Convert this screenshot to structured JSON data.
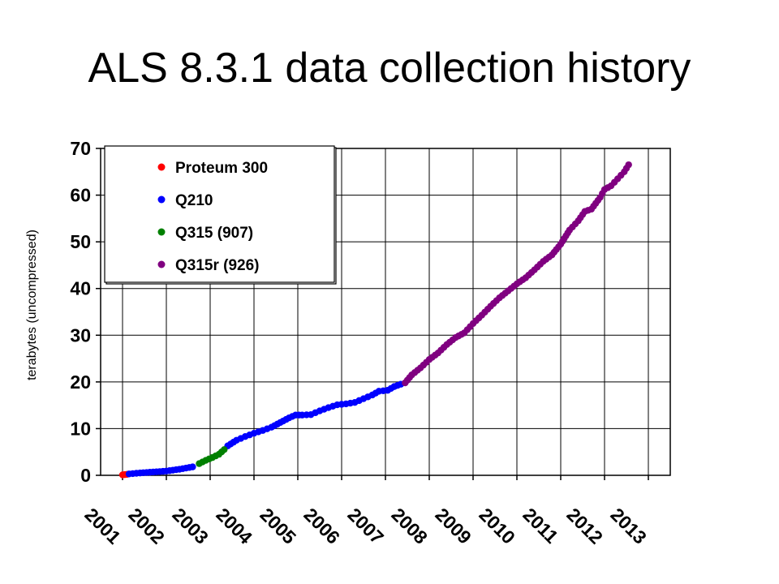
{
  "title": "ALS 8.3.1 data collection history",
  "chart_data": {
    "type": "scatter",
    "title": "ALS 8.3.1 data collection history",
    "xlabel": "",
    "ylabel": "terabytes (uncompressed)",
    "xlim": [
      2000.5,
      2013.5
    ],
    "ylim": [
      0,
      70
    ],
    "x_ticks": [
      "2001",
      "2002",
      "2003",
      "2004",
      "2005",
      "2006",
      "2007",
      "2008",
      "2009",
      "2010",
      "2011",
      "2012",
      "2013"
    ],
    "y_ticks": [
      0,
      10,
      20,
      30,
      40,
      50,
      60,
      70
    ],
    "grid": true,
    "legend_position": "top-left",
    "series": [
      {
        "name": "Proteum 300",
        "color": "#ff0000",
        "points": [
          [
            2001.0,
            0.1
          ],
          [
            2001.05,
            0.15
          ],
          [
            2001.1,
            0.2
          ]
        ]
      },
      {
        "name": "Q210",
        "color": "#0000ff",
        "points": [
          [
            2001.15,
            0.3
          ],
          [
            2001.4,
            0.5
          ],
          [
            2001.7,
            0.7
          ],
          [
            2002.0,
            0.9
          ],
          [
            2002.3,
            1.3
          ],
          [
            2002.6,
            1.8
          ],
          [
            2003.4,
            6.3
          ],
          [
            2003.6,
            7.5
          ],
          [
            2003.8,
            8.3
          ],
          [
            2004.0,
            9.0
          ],
          [
            2004.2,
            9.6
          ],
          [
            2004.4,
            10.3
          ],
          [
            2004.6,
            11.3
          ],
          [
            2004.8,
            12.3
          ],
          [
            2004.95,
            12.9
          ],
          [
            2005.1,
            12.9
          ],
          [
            2005.3,
            13.0
          ],
          [
            2005.5,
            13.8
          ],
          [
            2005.7,
            14.5
          ],
          [
            2005.9,
            15.1
          ],
          [
            2006.1,
            15.3
          ],
          [
            2006.3,
            15.6
          ],
          [
            2006.5,
            16.4
          ],
          [
            2006.7,
            17.2
          ],
          [
            2006.85,
            18.0
          ],
          [
            2007.05,
            18.2
          ],
          [
            2007.2,
            19.0
          ],
          [
            2007.35,
            19.5
          ]
        ]
      },
      {
        "name": "Q315 (907)",
        "color": "#008000",
        "points": [
          [
            2002.75,
            2.5
          ],
          [
            2002.9,
            3.2
          ],
          [
            2003.05,
            3.8
          ],
          [
            2003.2,
            4.5
          ],
          [
            2003.32,
            5.5
          ]
        ]
      },
      {
        "name": "Q315r (926)",
        "color": "#800080",
        "points": [
          [
            2007.45,
            19.8
          ],
          [
            2007.6,
            21.5
          ],
          [
            2007.8,
            23.0
          ],
          [
            2008.0,
            24.8
          ],
          [
            2008.2,
            26.2
          ],
          [
            2008.4,
            28.0
          ],
          [
            2008.6,
            29.5
          ],
          [
            2008.8,
            30.5
          ],
          [
            2009.0,
            32.5
          ],
          [
            2009.2,
            34.3
          ],
          [
            2009.4,
            36.2
          ],
          [
            2009.6,
            38.0
          ],
          [
            2009.8,
            39.5
          ],
          [
            2010.0,
            41.0
          ],
          [
            2010.2,
            42.3
          ],
          [
            2010.4,
            44.0
          ],
          [
            2010.6,
            45.8
          ],
          [
            2010.8,
            47.2
          ],
          [
            2011.0,
            49.5
          ],
          [
            2011.2,
            52.5
          ],
          [
            2011.4,
            54.5
          ],
          [
            2011.55,
            56.5
          ],
          [
            2011.7,
            57.0
          ],
          [
            2011.9,
            59.5
          ],
          [
            2012.0,
            61.2
          ],
          [
            2012.15,
            62.0
          ],
          [
            2012.3,
            63.5
          ],
          [
            2012.45,
            65.0
          ],
          [
            2012.55,
            66.5
          ]
        ]
      }
    ]
  }
}
